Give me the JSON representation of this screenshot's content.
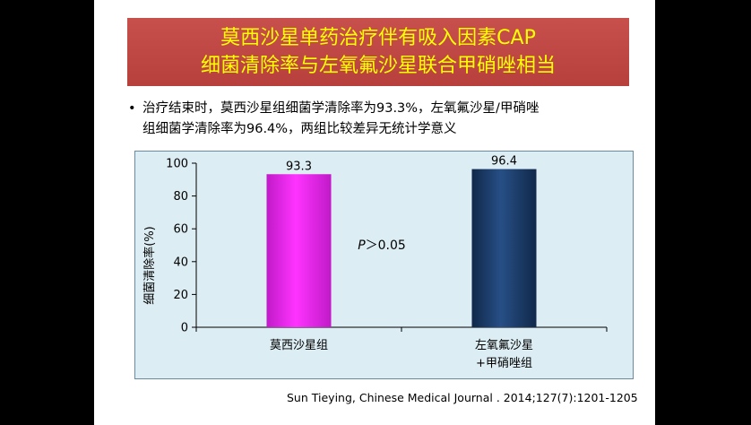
{
  "banner": {
    "line1": "莫西沙星单药治疗伴有吸入因素CAP",
    "line2": "细菌清除率与左氧氟沙星联合甲硝唑相当"
  },
  "bullet": {
    "line1": "治疗结束时，莫西沙星组细菌学清除率为93.3%，左氧氟沙星/甲硝唑",
    "line2": "组细菌学清除率为96.4%，两组比较差异无统计学意义"
  },
  "citation": "Sun Tieying, Chinese Medical Journal . 2014;127(7):1201-1205",
  "chart_data": {
    "type": "bar",
    "categories": [
      "莫西沙星组",
      "左氧氟沙星\n+甲硝唑组"
    ],
    "values": [
      93.3,
      96.4
    ],
    "data_labels": [
      "93.3",
      "96.4"
    ],
    "colors": [
      "#e81fe8",
      "#1a3a66"
    ],
    "ylabel": "细菌清除率(%)",
    "ylim": [
      0,
      100
    ],
    "yticks": [
      0,
      20,
      40,
      60,
      80,
      100
    ],
    "annotation": {
      "italic": "P",
      "rest": "＞0.05"
    },
    "grid": false
  }
}
